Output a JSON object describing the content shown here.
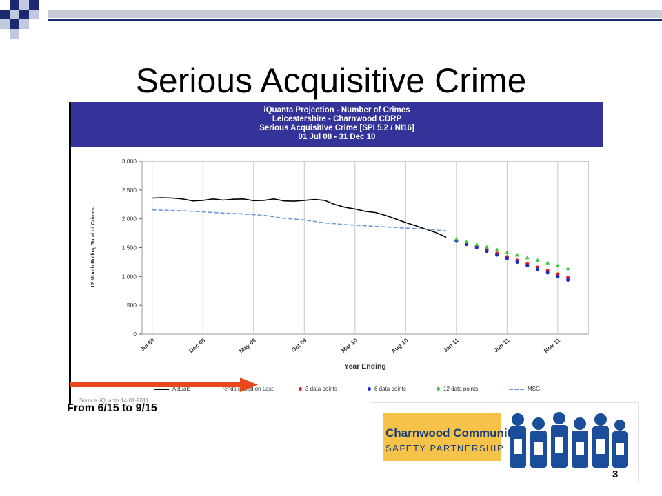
{
  "slide": {
    "title": "Serious Acquisitive Crime",
    "caption": "From 6/15 to 9/15",
    "page_number": "3"
  },
  "banner": {
    "line1": "iQuanta Projection - Number of Crimes",
    "line2": "Leicestershire - Charnwood CDRP",
    "line3": "Serious Acquisitive Crime [SPI 5.2 / NI16]",
    "line4": "01 Jul 08 - 31 Dec 10"
  },
  "legend": {
    "actuals": "Actuals",
    "trends_label": "Trends Based on Last:",
    "pts3": "3 data points",
    "pts6": "6 data points",
    "pts12": "12 data points",
    "msg": "MSG",
    "source": "Source: iQuanta 14-01-2011"
  },
  "logo": {
    "line1": "Charnwood Community",
    "line2": "SAFETY PARTNERSHIP"
  },
  "colors": {
    "banner": "#33339a",
    "actuals": "#000000",
    "msg": "#6a9ad8",
    "pts3": "#e01c1c",
    "pts6": "#1c2cc8",
    "pts12": "#3cc83c",
    "arrow": "#e8481c",
    "logo_yellow": "#f5c24a",
    "logo_blue": "#1a4e9a"
  },
  "chart_data": {
    "type": "line",
    "xlabel": "Year Ending",
    "ylabel": "12 Month Rolling Total of Crimes",
    "ylim": [
      0,
      3000
    ],
    "yticks": [
      "0",
      "500",
      "1,000",
      "1,500",
      "2,000",
      "2,500",
      "3,000"
    ],
    "x_tick_labels": [
      "Jul 08",
      "Dec 08",
      "May 09",
      "Oct 09",
      "Mar 10",
      "Aug 10",
      "Jan 11",
      "Jun 11",
      "Nov 11"
    ],
    "x_tick_positions": [
      0,
      5,
      10,
      15,
      20,
      25,
      30,
      35,
      40
    ],
    "grid": "vertical",
    "series": [
      {
        "name": "Actuals",
        "x": [
          0,
          1,
          2,
          3,
          4,
          5,
          6,
          7,
          8,
          9,
          10,
          11,
          12,
          13,
          14,
          15,
          16,
          17,
          18,
          19,
          20,
          21,
          22,
          23,
          24,
          25,
          26,
          27,
          28,
          29
        ],
        "values": [
          2360,
          2365,
          2360,
          2345,
          2310,
          2320,
          2345,
          2325,
          2340,
          2345,
          2315,
          2320,
          2345,
          2310,
          2305,
          2320,
          2335,
          2320,
          2250,
          2200,
          2170,
          2130,
          2110,
          2060,
          2000,
          1935,
          1880,
          1820,
          1760,
          1680
        ]
      },
      {
        "name": "MSG",
        "x": [
          0,
          3,
          5,
          7,
          9,
          11,
          13,
          15,
          17,
          19,
          21,
          23,
          25,
          27,
          29
        ],
        "values": [
          2155,
          2140,
          2120,
          2100,
          2085,
          2060,
          2010,
          1980,
          1930,
          1900,
          1880,
          1860,
          1840,
          1820,
          1790
        ]
      },
      {
        "name": "3 data points",
        "x": [
          30,
          31,
          32,
          33,
          34,
          35,
          36,
          37,
          38,
          39,
          40,
          41
        ],
        "values": [
          1625,
          1575,
          1520,
          1460,
          1400,
          1340,
          1280,
          1220,
          1160,
          1100,
          1040,
          980
        ]
      },
      {
        "name": "6 data points",
        "x": [
          30,
          31,
          32,
          33,
          34,
          35,
          36,
          37,
          38,
          39,
          40,
          41
        ],
        "values": [
          1615,
          1560,
          1500,
          1440,
          1375,
          1315,
          1250,
          1190,
          1125,
          1065,
          1000,
          940
        ]
      },
      {
        "name": "12 data points",
        "x": [
          30,
          31,
          32,
          33,
          34,
          35,
          36,
          37,
          38,
          39,
          40,
          41
        ],
        "values": [
          1650,
          1605,
          1560,
          1515,
          1465,
          1420,
          1375,
          1330,
          1285,
          1240,
          1190,
          1140
        ]
      }
    ]
  }
}
